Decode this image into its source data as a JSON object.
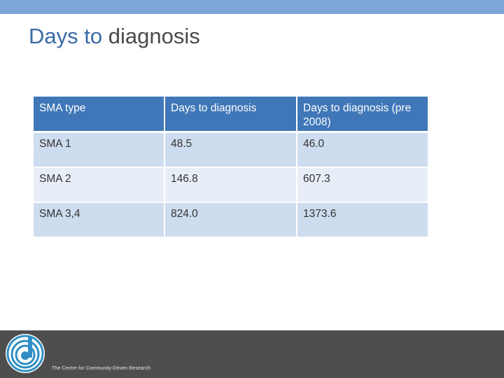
{
  "title": {
    "part1": "Days to",
    "part2": "diagnosis"
  },
  "table": {
    "headers": [
      "SMA type",
      "Days to diagnosis",
      "Days to diagnosis (pre 2008)"
    ],
    "rows": [
      [
        "SMA 1",
        "48.5",
        "46.0"
      ],
      [
        "SMA 2",
        "146.8",
        "607.3"
      ],
      [
        "SMA 3,4",
        "824.0",
        "1373.6"
      ]
    ]
  },
  "footer": {
    "organization": "The Centre for Community-Driven Research",
    "logo_icon": "spiral-d-logo-icon"
  },
  "colors": {
    "top_bar": "#7ea6d9",
    "title_accent": "#3a6aa6",
    "table_header": "#3f77b8",
    "row_dark": "#cedcef",
    "row_light": "#e8eef7",
    "footer": "#4e4e4e"
  }
}
